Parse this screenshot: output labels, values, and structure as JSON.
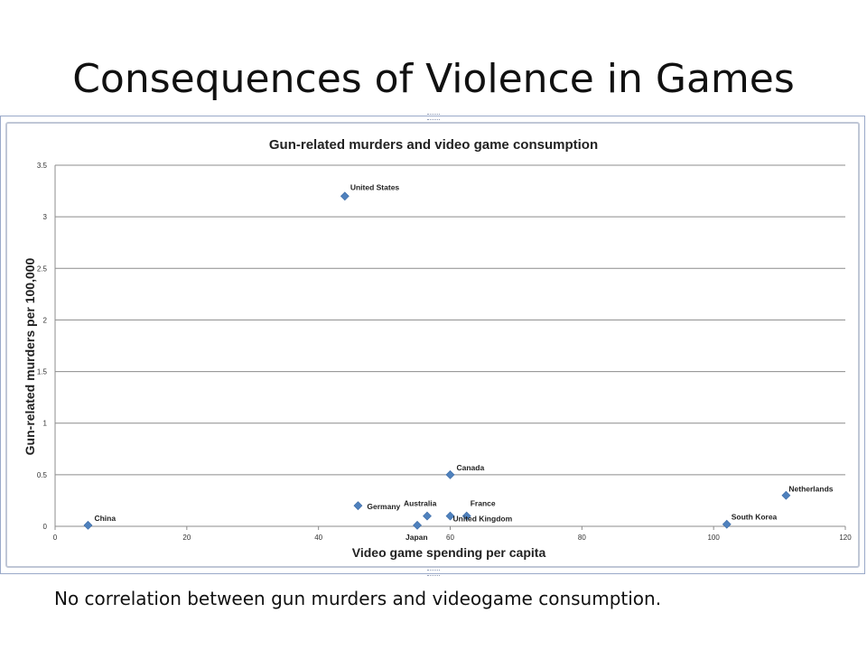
{
  "slide": {
    "title": "Consequences of Violence in Games",
    "caption": "No correlation between gun murders and videogame consumption."
  },
  "chart_data": {
    "type": "scatter",
    "title": "Gun-related murders and video game consumption",
    "xlabel": "Video game spending per capita",
    "ylabel": "Gun-related murders per 100,000",
    "xlim": [
      0,
      120
    ],
    "ylim": [
      0,
      3.5
    ],
    "xticks": [
      0,
      20,
      40,
      60,
      80,
      100,
      120
    ],
    "yticks": [
      0,
      0.5,
      1,
      1.5,
      2,
      2.5,
      3,
      3.5
    ],
    "grid": "horizontal",
    "legend": "none",
    "marker_color": "#4f81bd",
    "points": [
      {
        "label": "United States",
        "x": 44,
        "y": 3.2
      },
      {
        "label": "Canada",
        "x": 60,
        "y": 0.5
      },
      {
        "label": "Germany",
        "x": 46,
        "y": 0.2
      },
      {
        "label": "Australia",
        "x": 56.5,
        "y": 0.1
      },
      {
        "label": "France",
        "x": 62.5,
        "y": 0.1
      },
      {
        "label": "United Kingdom",
        "x": 60,
        "y": 0.1
      },
      {
        "label": "Japan",
        "x": 55,
        "y": 0.01
      },
      {
        "label": "China",
        "x": 5,
        "y": 0.01
      },
      {
        "label": "Netherlands",
        "x": 111,
        "y": 0.3
      },
      {
        "label": "South Korea",
        "x": 102,
        "y": 0.02
      }
    ]
  }
}
